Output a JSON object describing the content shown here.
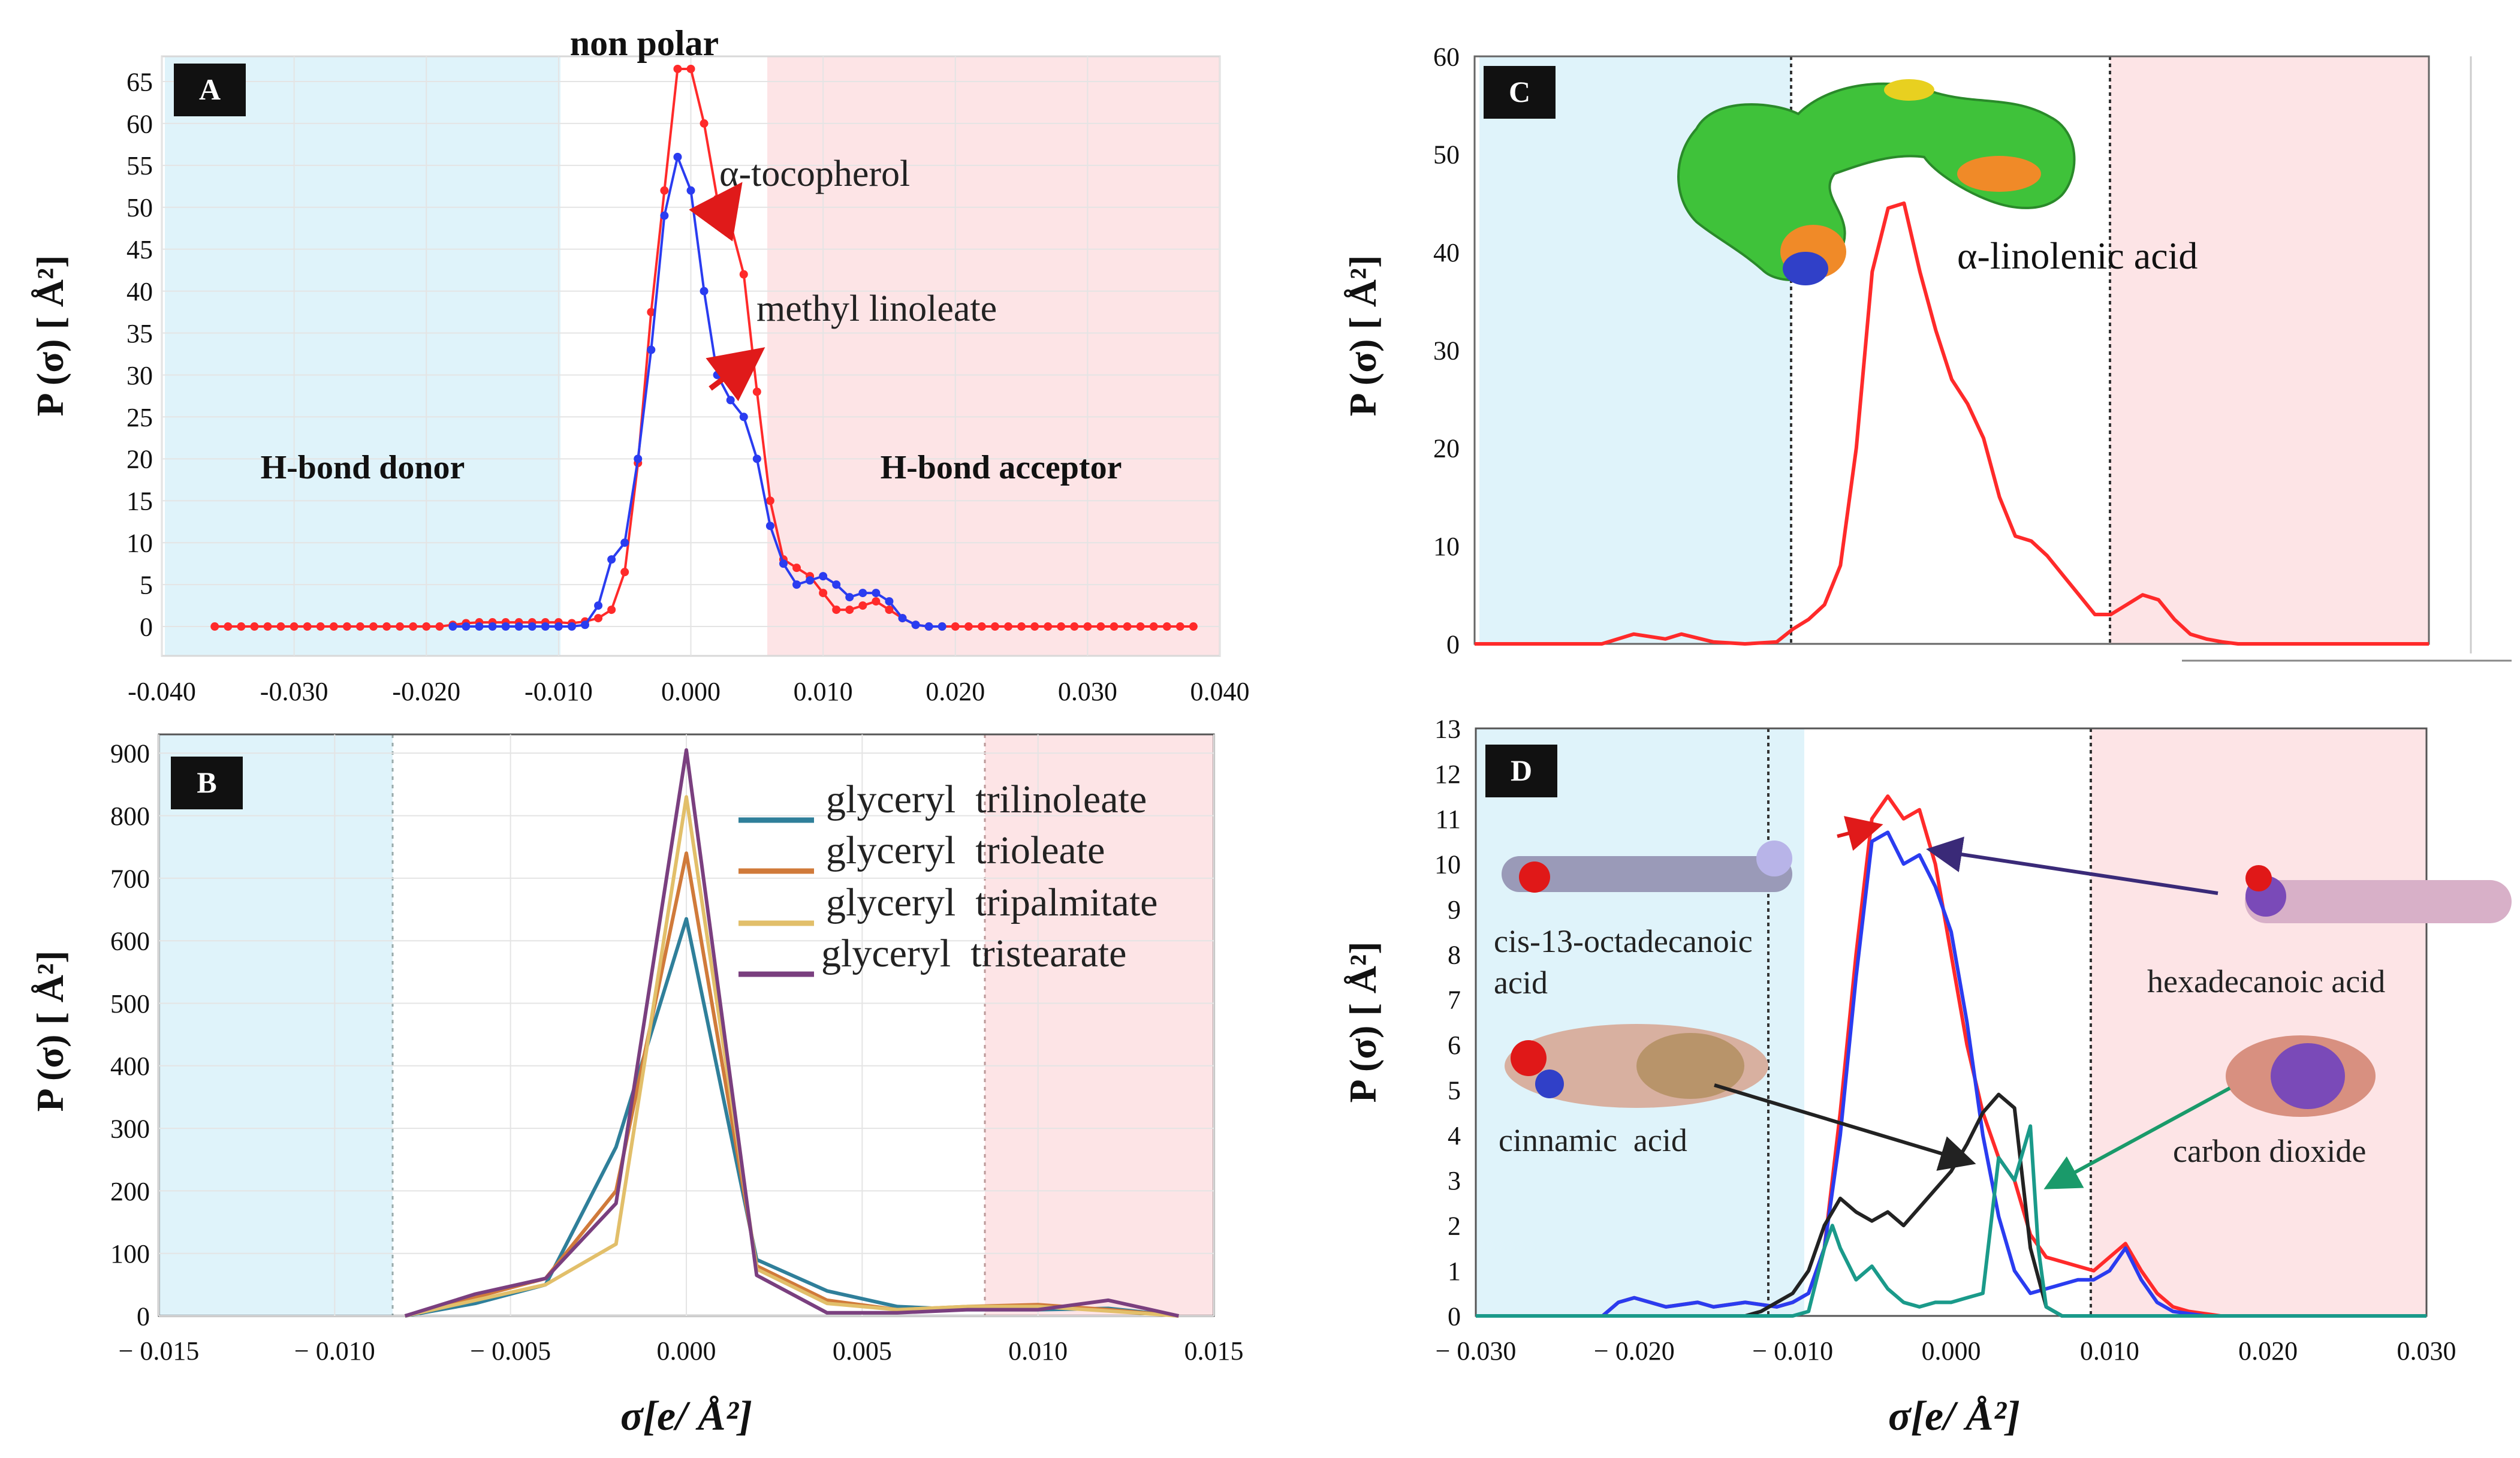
{
  "colors": {
    "donor_region": "#dff3fa",
    "acceptor_region": "#fde4e6",
    "red": "#ff2a2a",
    "blue": "#2a3cf0",
    "teal": "#1a9a8a",
    "black": "#222222",
    "trilinoleate": "#2f7f9a",
    "trioleate": "#d07a3a",
    "tripalmitate": "#e2bf6a",
    "tristearate": "#7a3f7f",
    "arrow_red": "#e01a1a",
    "arrow_navy": "#3a2a78",
    "arrow_black": "#222222",
    "arrow_green": "#1a9a6a",
    "mol_green": "#3fc23a",
    "mol_blue": "#3040c8",
    "mol_orange": "#f08a28",
    "mol_yellow": "#e8d020",
    "mol_lavender": "#b8b4e8",
    "mol_tan": "#d8b0a0",
    "mol_purple": "#7a4ab8",
    "mol_red": "#e01818",
    "mol_gray": "#9a9ab8"
  },
  "chart_data": [
    {
      "panel": "A",
      "type": "line",
      "xlabel": "",
      "ylabel": "P (σ) [ Å²]",
      "xlim": [
        -0.04,
        0.04
      ],
      "ylim": [
        -3.5,
        68
      ],
      "xticks": [
        -0.04,
        -0.03,
        -0.02,
        -0.01,
        0.0,
        0.01,
        0.02,
        0.03,
        0.04
      ],
      "xtick_labels": [
        "-0.040",
        "-0.030",
        "-0.020",
        "-0.010",
        "0.000",
        "0.010",
        "0.020",
        "0.030",
        "0.040"
      ],
      "yticks": [
        0,
        5,
        10,
        15,
        20,
        25,
        30,
        35,
        40,
        45,
        50,
        55,
        60,
        65
      ],
      "ytick_labels": [
        "0",
        "5",
        "10",
        "15",
        "20",
        "25",
        "30",
        "35",
        "40",
        "45",
        "50",
        "55",
        "60",
        "65"
      ],
      "regions": {
        "donor": [
          -0.04,
          -0.01
        ],
        "acceptor": [
          0.0075,
          0.04
        ]
      },
      "region_labels": {
        "donor": "H-bond donor",
        "center": "non polar",
        "acceptor": "H-bond acceptor"
      },
      "series": [
        {
          "name": "α-tocopherol",
          "color_key": "red",
          "markers": true,
          "x": [
            -0.036,
            -0.035,
            -0.034,
            -0.033,
            -0.032,
            -0.031,
            -0.03,
            -0.029,
            -0.028,
            -0.027,
            -0.026,
            -0.025,
            -0.024,
            -0.023,
            -0.022,
            -0.021,
            -0.02,
            -0.019,
            -0.018,
            -0.017,
            -0.016,
            -0.015,
            -0.014,
            -0.013,
            -0.012,
            -0.011,
            -0.01,
            -0.009,
            -0.008,
            -0.007,
            -0.006,
            -0.005,
            -0.004,
            -0.003,
            -0.002,
            -0.001,
            0.0,
            0.001,
            0.002,
            0.003,
            0.004,
            0.005,
            0.006,
            0.007,
            0.008,
            0.009,
            0.01,
            0.011,
            0.012,
            0.013,
            0.014,
            0.015,
            0.016,
            0.017,
            0.018,
            0.019,
            0.02,
            0.021,
            0.022,
            0.023,
            0.024,
            0.025,
            0.026,
            0.027,
            0.028,
            0.029,
            0.03,
            0.031,
            0.032,
            0.033,
            0.034,
            0.035,
            0.036,
            0.037,
            0.038
          ],
          "y": [
            0,
            0,
            0,
            0,
            0,
            0,
            0,
            0,
            0,
            0,
            0,
            0,
            0,
            0,
            0,
            0,
            0,
            0,
            0.2,
            0.4,
            0.5,
            0.5,
            0.5,
            0.5,
            0.5,
            0.5,
            0.5,
            0.4,
            0.6,
            1.0,
            2.0,
            6.5,
            19.5,
            37.5,
            52.0,
            66.5,
            66.5,
            60.0,
            51.0,
            48.0,
            42.0,
            28.0,
            15.0,
            8.0,
            7.0,
            6.0,
            4.0,
            2.0,
            2.0,
            2.5,
            3.0,
            2.0,
            1.0,
            0.2,
            0,
            0,
            0,
            0,
            0,
            0,
            0,
            0,
            0,
            0,
            0,
            0,
            0,
            0,
            0,
            0,
            0,
            0,
            0,
            0,
            0
          ]
        },
        {
          "name": "methyl linoleate",
          "color_key": "blue",
          "markers": true,
          "x": [
            -0.018,
            -0.017,
            -0.016,
            -0.015,
            -0.014,
            -0.013,
            -0.012,
            -0.011,
            -0.01,
            -0.009,
            -0.008,
            -0.007,
            -0.006,
            -0.005,
            -0.004,
            -0.003,
            -0.002,
            -0.001,
            0.0,
            0.001,
            0.002,
            0.003,
            0.004,
            0.005,
            0.006,
            0.007,
            0.008,
            0.009,
            0.01,
            0.011,
            0.012,
            0.013,
            0.014,
            0.015,
            0.016,
            0.017,
            0.018,
            0.019
          ],
          "y": [
            0,
            0,
            0,
            0,
            0,
            0,
            0,
            0,
            0,
            0,
            0.2,
            2.5,
            8.0,
            10.0,
            20.0,
            33.0,
            49.0,
            56.0,
            52.0,
            40.0,
            30.0,
            27.0,
            25.0,
            20.0,
            12.0,
            7.5,
            5.0,
            5.5,
            6.0,
            5.0,
            3.5,
            4.0,
            4.0,
            3.0,
            1.0,
            0.2,
            0,
            0
          ]
        }
      ],
      "legend_labels": [
        "α-tocopherol",
        "methyl linoleate"
      ],
      "panel_label": "A"
    },
    {
      "panel": "B",
      "type": "line",
      "xlabel": "σ[e/ Å²]",
      "ylabel": "P (σ) [ Å²]",
      "xlim": [
        -0.015,
        0.015
      ],
      "ylim": [
        0,
        930
      ],
      "xticks": [
        -0.015,
        -0.01,
        -0.005,
        0.0,
        0.005,
        0.01,
        0.015
      ],
      "xtick_labels": [
        "− 0.015",
        "− 0.010",
        "− 0.005",
        "0.000",
        "0.005",
        "0.010",
        "0.015"
      ],
      "yticks": [
        0,
        100,
        200,
        300,
        400,
        500,
        600,
        700,
        800,
        900
      ],
      "ytick_labels": [
        "0",
        "100",
        "200",
        "300",
        "400",
        "500",
        "600",
        "700",
        "800",
        "900"
      ],
      "regions": {
        "donor": [
          -0.015,
          -0.008
        ],
        "acceptor": [
          0.0087,
          0.015
        ]
      },
      "series": [
        {
          "name": "glyceryl trilinoleate",
          "color_key": "trilinoleate",
          "x": [
            -0.008,
            -0.006,
            -0.004,
            -0.002,
            0.0,
            0.002,
            0.004,
            0.006,
            0.008,
            0.01,
            0.012,
            0.014
          ],
          "y": [
            0,
            20,
            50,
            270,
            635,
            90,
            40,
            15,
            10,
            10,
            12,
            0
          ]
        },
        {
          "name": "glyceryl trioleate",
          "color_key": "trioleate",
          "x": [
            -0.008,
            -0.006,
            -0.004,
            -0.002,
            0.0,
            0.002,
            0.004,
            0.006,
            0.008,
            0.01,
            0.012,
            0.014
          ],
          "y": [
            0,
            30,
            60,
            200,
            740,
            80,
            25,
            10,
            15,
            18,
            10,
            0
          ]
        },
        {
          "name": "glyceryl tripalmitate",
          "color_key": "tripalmitate",
          "x": [
            -0.008,
            -0.006,
            -0.004,
            -0.002,
            0.0,
            0.002,
            0.004,
            0.006,
            0.008,
            0.01,
            0.012,
            0.014
          ],
          "y": [
            0,
            25,
            50,
            115,
            830,
            75,
            20,
            10,
            15,
            15,
            8,
            0
          ]
        },
        {
          "name": "glyceryl tristearate",
          "color_key": "tristearate",
          "x": [
            -0.008,
            -0.006,
            -0.004,
            -0.002,
            0.0,
            0.002,
            0.004,
            0.006,
            0.008,
            0.01,
            0.012,
            0.014
          ],
          "y": [
            0,
            35,
            60,
            180,
            905,
            65,
            5,
            5,
            10,
            10,
            25,
            0
          ]
        }
      ],
      "legend_labels": [
        "glyceryl  trilinoleate",
        "glyceryl  trioleate",
        "glyceryl  tripalmitate",
        "glyceryl  tristearate"
      ],
      "panel_label": "B"
    },
    {
      "panel": "C",
      "type": "line",
      "xlabel": "",
      "ylabel": "P (σ) [ Å²]",
      "xlim": [
        -0.03,
        0.03
      ],
      "ylim": [
        0,
        60
      ],
      "yticks": [
        0,
        10,
        20,
        30,
        40,
        50,
        60
      ],
      "ytick_labels": [
        "0",
        "10",
        "20",
        "30",
        "40",
        "50",
        "60"
      ],
      "regions": {
        "donor": [
          -0.03,
          -0.01
        ],
        "acceptor": [
          0.01,
          0.03
        ]
      },
      "dotted_lines": [
        -0.01,
        0.01
      ],
      "series": [
        {
          "name": "α-linolenic acid",
          "color_key": "red",
          "x": [
            -0.03,
            -0.022,
            -0.02,
            -0.018,
            -0.017,
            -0.015,
            -0.013,
            -0.011,
            -0.01,
            -0.009,
            -0.008,
            -0.007,
            -0.006,
            -0.005,
            -0.004,
            -0.003,
            -0.002,
            -0.001,
            0.0,
            0.001,
            0.002,
            0.003,
            0.004,
            0.005,
            0.006,
            0.007,
            0.008,
            0.009,
            0.01,
            0.011,
            0.012,
            0.013,
            0.014,
            0.015,
            0.016,
            0.017,
            0.018,
            0.02,
            0.03
          ],
          "y": [
            0,
            0,
            1.0,
            0.5,
            1.0,
            0.2,
            0,
            0.2,
            1.5,
            2.5,
            4.0,
            8.0,
            20.0,
            38.0,
            44.5,
            45.0,
            38.0,
            32.0,
            27.0,
            24.5,
            21.0,
            15.0,
            11.0,
            10.5,
            9.0,
            7.0,
            5.0,
            3.0,
            3.0,
            4.0,
            5.0,
            4.5,
            2.5,
            1.0,
            0.5,
            0.2,
            0,
            0,
            0
          ]
        }
      ],
      "annotation": "α-linolenic acid",
      "panel_label": "C"
    },
    {
      "panel": "D",
      "type": "line",
      "xlabel": "σ[e/ Å²]",
      "ylabel": "P (σ) [ Å²]",
      "xlim": [
        -0.03,
        0.03
      ],
      "ylim": [
        0,
        13
      ],
      "xticks": [
        -0.03,
        -0.02,
        -0.01,
        0.0,
        0.01,
        0.02,
        0.03
      ],
      "xtick_labels": [
        "− 0.030",
        "− 0.020",
        "− 0.010",
        "0.000",
        "0.010",
        "0.020",
        "0.030"
      ],
      "yticks": [
        0,
        1,
        2,
        3,
        4,
        5,
        6,
        7,
        8,
        9,
        10,
        11,
        12,
        13
      ],
      "ytick_labels": [
        "0",
        "1",
        "2",
        "3",
        "4",
        "5",
        "6",
        "7",
        "8",
        "9",
        "10",
        "11",
        "12",
        "13"
      ],
      "regions": {
        "donor": [
          -0.03,
          -0.0092
        ],
        "acceptor": [
          0.0085,
          0.03
        ]
      },
      "dotted_lines": [
        -0.0092,
        0.0085
      ],
      "series": [
        {
          "name": "cis-13-octadecanoic acid",
          "color_key": "red",
          "x": [
            -0.03,
            -0.022,
            -0.021,
            -0.02,
            -0.018,
            -0.016,
            -0.015,
            -0.013,
            -0.011,
            -0.01,
            -0.009,
            -0.008,
            -0.007,
            -0.006,
            -0.005,
            -0.004,
            -0.003,
            -0.002,
            -0.001,
            0.0,
            0.001,
            0.002,
            0.003,
            0.004,
            0.005,
            0.006,
            0.007,
            0.008,
            0.009,
            0.01,
            0.011,
            0.012,
            0.013,
            0.014,
            0.015,
            0.016,
            0.017,
            0.03
          ],
          "y": [
            0,
            0,
            0.3,
            0.4,
            0.2,
            0.3,
            0.2,
            0.3,
            0.2,
            0.3,
            0.5,
            1.5,
            4.5,
            8.0,
            11.0,
            11.5,
            11.0,
            11.2,
            10.0,
            8.0,
            6.0,
            4.5,
            3.5,
            3.0,
            1.8,
            1.3,
            1.2,
            1.1,
            1.0,
            1.3,
            1.6,
            1.0,
            0.5,
            0.2,
            0.1,
            0.05,
            0,
            0
          ]
        },
        {
          "name": "hexadecanoic acid",
          "color_key": "blue",
          "x": [
            -0.03,
            -0.022,
            -0.021,
            -0.02,
            -0.018,
            -0.016,
            -0.015,
            -0.013,
            -0.011,
            -0.01,
            -0.009,
            -0.008,
            -0.007,
            -0.006,
            -0.005,
            -0.004,
            -0.003,
            -0.002,
            -0.001,
            0.0,
            0.001,
            0.002,
            0.003,
            0.004,
            0.005,
            0.006,
            0.007,
            0.008,
            0.009,
            0.01,
            0.011,
            0.012,
            0.013,
            0.014,
            0.015,
            0.016,
            0.017,
            0.03
          ],
          "y": [
            0,
            0,
            0.3,
            0.4,
            0.2,
            0.3,
            0.2,
            0.3,
            0.2,
            0.3,
            0.5,
            1.5,
            4.0,
            7.5,
            10.5,
            10.7,
            10.0,
            10.2,
            9.5,
            8.5,
            6.5,
            4.0,
            2.2,
            1.0,
            0.5,
            0.6,
            0.7,
            0.8,
            0.8,
            1.0,
            1.5,
            0.8,
            0.3,
            0.1,
            0.05,
            0,
            0,
            0
          ]
        },
        {
          "name": "cinnamic acid",
          "color_key": "black",
          "x": [
            -0.03,
            -0.013,
            -0.012,
            -0.011,
            -0.01,
            -0.009,
            -0.008,
            -0.007,
            -0.006,
            -0.005,
            -0.004,
            -0.003,
            -0.002,
            -0.001,
            0.0,
            0.001,
            0.002,
            0.003,
            0.004,
            0.005,
            0.006,
            0.007,
            0.03
          ],
          "y": [
            0,
            0,
            0.1,
            0.3,
            0.5,
            1.0,
            2.0,
            2.6,
            2.3,
            2.1,
            2.3,
            2.0,
            2.4,
            2.8,
            3.2,
            3.8,
            4.5,
            4.9,
            4.6,
            1.5,
            0.2,
            0,
            0
          ]
        },
        {
          "name": "carbon dioxide",
          "color_key": "teal",
          "x": [
            -0.03,
            -0.01,
            -0.009,
            -0.008,
            -0.0075,
            -0.007,
            -0.006,
            -0.005,
            -0.004,
            -0.003,
            -0.002,
            -0.001,
            0.0,
            0.001,
            0.002,
            0.003,
            0.004,
            0.005,
            0.0055,
            0.006,
            0.007,
            0.03
          ],
          "y": [
            0,
            0,
            0.1,
            1.5,
            2.0,
            1.5,
            0.8,
            1.1,
            0.6,
            0.3,
            0.2,
            0.3,
            0.3,
            0.4,
            0.5,
            3.5,
            3.0,
            4.2,
            1.5,
            0.2,
            0,
            0
          ]
        }
      ],
      "molecule_labels": [
        "cis-13-octadecanoic\nacid",
        "hexadecanoic acid",
        "cinnamic  acid",
        "carbon dioxide"
      ],
      "panel_label": "D"
    }
  ]
}
